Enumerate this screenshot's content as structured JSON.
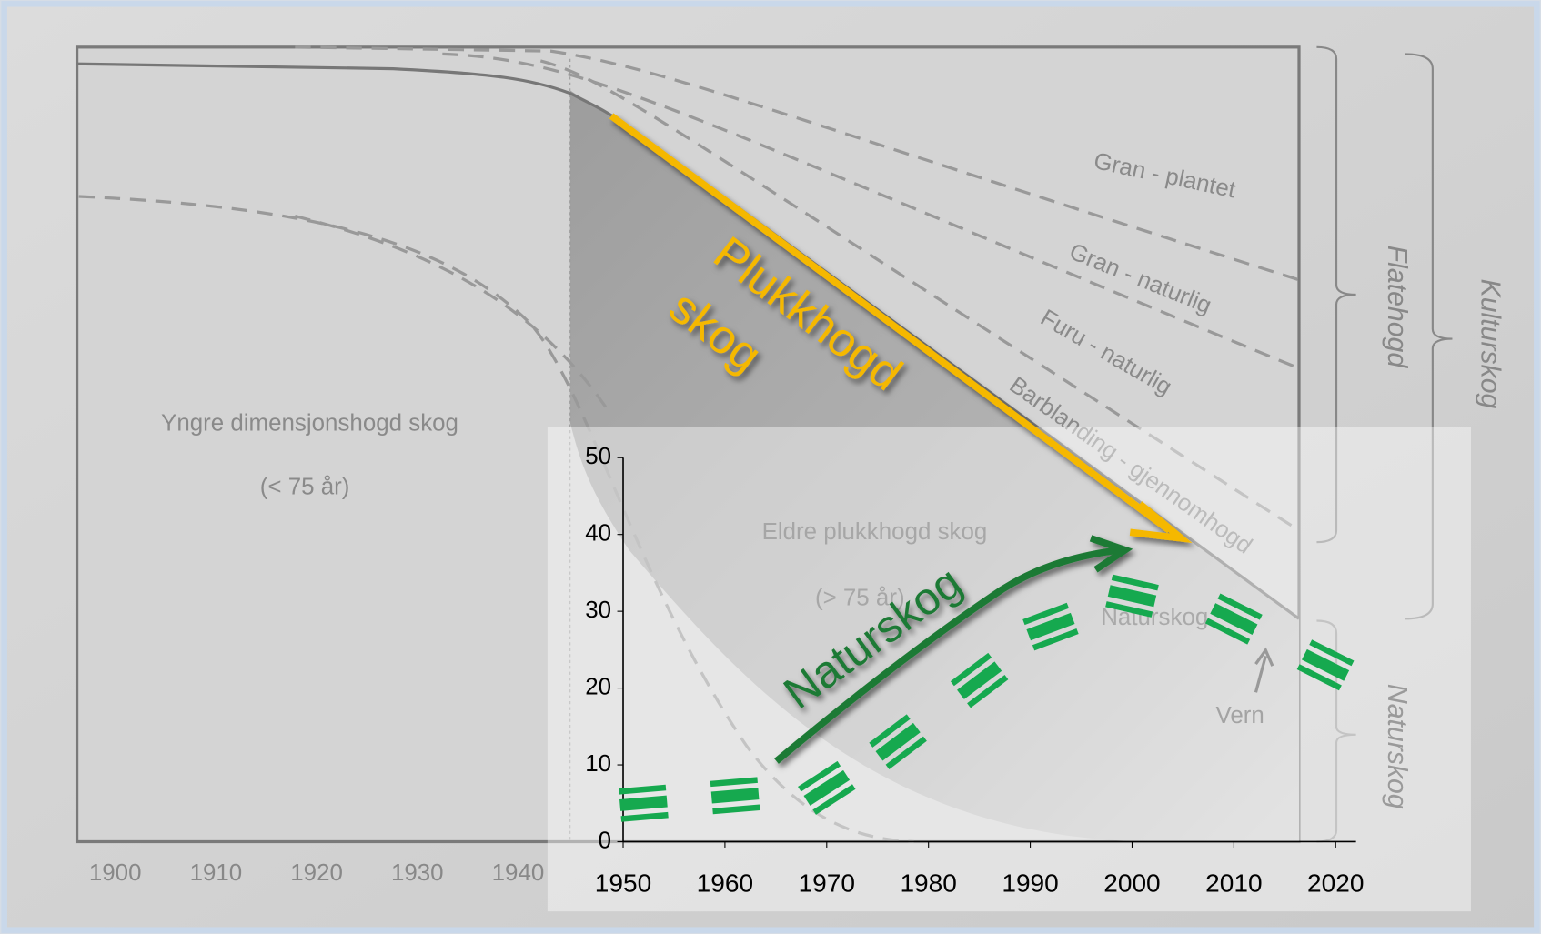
{
  "background": {
    "xticks": [
      1900,
      1910,
      1920,
      1930,
      1940
    ],
    "curve_labels": [
      "Gran - plantet",
      "Gran - naturlig",
      "Furu - naturlig",
      "Barblanding - gjennomhogd"
    ],
    "region_labels": [
      "Yngre dimensjonshogd skog",
      "(< 75 år)",
      "Eldre plukkhogd skog",
      "(> 75 år)",
      "Naturskog",
      "Vern"
    ],
    "brackets": [
      "Flatehogd",
      "Kulturskog",
      "Naturskog"
    ]
  },
  "arrows": {
    "plukkhogd": [
      "Plukkhogd",
      "skog"
    ],
    "naturskog": "Naturskog"
  },
  "chart_data": {
    "type": "scatter",
    "color": "#16a94f",
    "x": [
      1952,
      1961,
      1970,
      1977,
      1985,
      1992,
      2000,
      2010,
      2019
    ],
    "values": [
      5,
      6,
      7,
      13,
      21,
      28,
      32,
      29,
      23
    ],
    "xlim": [
      1950,
      2022
    ],
    "ylim": [
      0,
      50
    ],
    "xticks": [
      1950,
      1960,
      1970,
      1980,
      1990,
      2000,
      2010,
      2020
    ],
    "yticks": [
      0,
      10,
      20,
      30,
      40,
      50
    ]
  }
}
